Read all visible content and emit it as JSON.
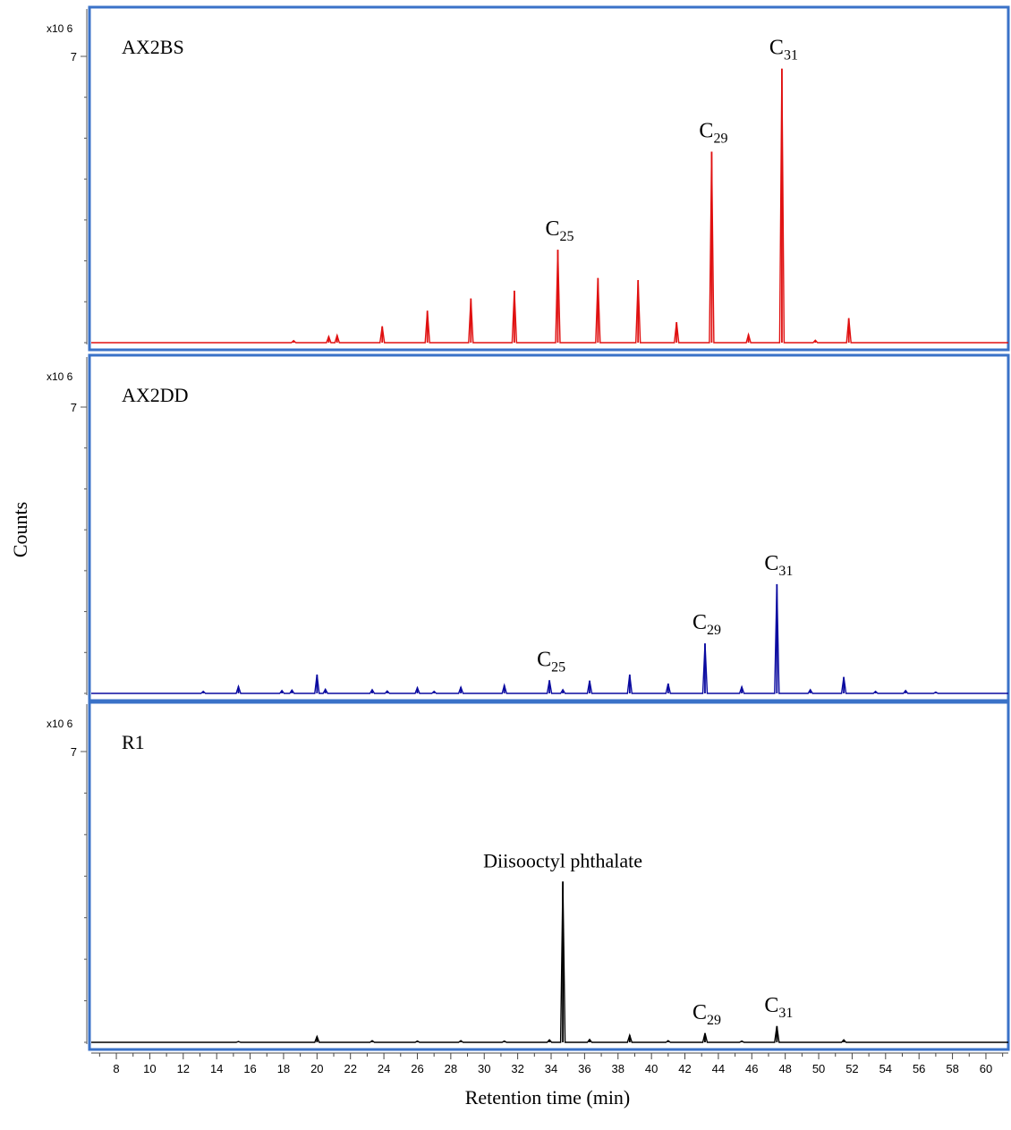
{
  "chart_data": {
    "type": "line",
    "ylabel": "Counts",
    "xlabel": "Retention time (min)",
    "scale_label": "x10 6",
    "xlim": [
      6.5,
      61.5
    ],
    "xticks": [
      8,
      10,
      12,
      14,
      16,
      18,
      20,
      22,
      24,
      26,
      28,
      30,
      32,
      34,
      36,
      38,
      40,
      42,
      44,
      46,
      48,
      50,
      52,
      54,
      56,
      58,
      60
    ],
    "ylim": [
      0,
      7
    ],
    "ytick_label": "7",
    "colors": {
      "AX2BS": "#e01010",
      "AX2DD": "#0a0aa0",
      "R1": "#000000",
      "frame": "#3a72c8"
    },
    "panels": [
      {
        "name": "AX2BS",
        "color": "#e01010",
        "peaks": [
          [
            18.6,
            0.05
          ],
          [
            20.7,
            0.15
          ],
          [
            21.2,
            0.18
          ],
          [
            23.9,
            0.4
          ],
          [
            26.6,
            0.78
          ],
          [
            29.2,
            1.08
          ],
          [
            31.8,
            1.27
          ],
          [
            34.4,
            2.27
          ],
          [
            36.8,
            1.58
          ],
          [
            39.2,
            1.53
          ],
          [
            41.5,
            0.5
          ],
          [
            43.6,
            4.67
          ],
          [
            45.8,
            0.2
          ],
          [
            47.8,
            6.7
          ],
          [
            49.8,
            0.06
          ],
          [
            51.8,
            0.6
          ]
        ],
        "annotations": [
          {
            "base": "C",
            "sub": "25",
            "x": 34.4
          },
          {
            "base": "C",
            "sub": "29",
            "x": 43.6
          },
          {
            "base": "C",
            "sub": "31",
            "x": 47.8
          }
        ]
      },
      {
        "name": "AX2DD",
        "color": "#0a0aa0",
        "peaks": [
          [
            13.2,
            0.05
          ],
          [
            15.3,
            0.17
          ],
          [
            17.9,
            0.07
          ],
          [
            18.5,
            0.08
          ],
          [
            20.0,
            0.46
          ],
          [
            20.5,
            0.1
          ],
          [
            23.3,
            0.09
          ],
          [
            24.2,
            0.06
          ],
          [
            26.0,
            0.14
          ],
          [
            27.0,
            0.05
          ],
          [
            28.6,
            0.15
          ],
          [
            31.2,
            0.2
          ],
          [
            33.9,
            0.32
          ],
          [
            34.7,
            0.09
          ],
          [
            36.3,
            0.31
          ],
          [
            38.7,
            0.46
          ],
          [
            41.0,
            0.24
          ],
          [
            43.2,
            1.22
          ],
          [
            45.4,
            0.16
          ],
          [
            47.5,
            2.67
          ],
          [
            49.5,
            0.09
          ],
          [
            51.5,
            0.4
          ],
          [
            53.4,
            0.05
          ],
          [
            55.2,
            0.07
          ],
          [
            57.0,
            0.03
          ]
        ],
        "annotations": [
          {
            "base": "C",
            "sub": "25",
            "x": 33.9
          },
          {
            "base": "C",
            "sub": "29",
            "x": 43.2
          },
          {
            "base": "C",
            "sub": "31",
            "x": 47.5
          }
        ]
      },
      {
        "name": "R1",
        "color": "#000000",
        "peaks": [
          [
            15.3,
            0.02
          ],
          [
            20.0,
            0.14
          ],
          [
            23.3,
            0.04
          ],
          [
            26.0,
            0.03
          ],
          [
            28.6,
            0.04
          ],
          [
            31.2,
            0.03
          ],
          [
            33.9,
            0.06
          ],
          [
            34.7,
            3.87
          ],
          [
            36.3,
            0.07
          ],
          [
            38.7,
            0.17
          ],
          [
            41.0,
            0.04
          ],
          [
            43.2,
            0.22
          ],
          [
            45.4,
            0.03
          ],
          [
            47.5,
            0.39
          ],
          [
            51.5,
            0.06
          ]
        ],
        "annotations": [
          {
            "text": "Diisooctyl phthalate",
            "x": 34.7
          },
          {
            "base": "C",
            "sub": "29",
            "x": 43.2
          },
          {
            "base": "C",
            "sub": "31",
            "x": 47.5
          }
        ]
      }
    ]
  }
}
